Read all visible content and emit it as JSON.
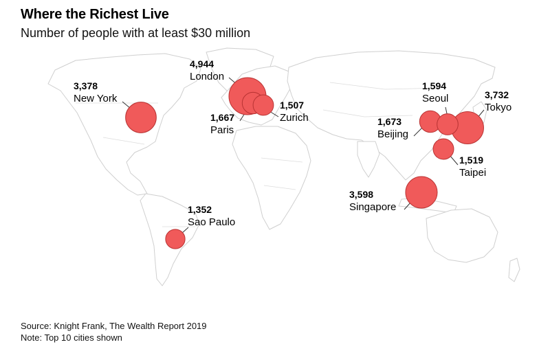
{
  "title": "Where the Richest Live",
  "subtitle": "Number of people with at least $30 million",
  "footer": {
    "source": "Source: Knight Frank, The Wealth Report 2019",
    "note": "Note: Top 10 cities shown"
  },
  "colors": {
    "bubble": "#f05a5a",
    "bubble_stroke": "#b83333",
    "land": "#ffffff",
    "border": "#cfcfcf"
  },
  "chart_data": {
    "type": "bubble-map",
    "title": "Where the Richest Live",
    "subtitle": "Number of people with at least $30 million",
    "cities": [
      {
        "name": "London",
        "value": 4944,
        "label": "4,944"
      },
      {
        "name": "New York",
        "value": 3378,
        "label": "3,378"
      },
      {
        "name": "Paris",
        "value": 1667,
        "label": "1,667"
      },
      {
        "name": "Zurich",
        "value": 1507,
        "label": "1,507"
      },
      {
        "name": "Seoul",
        "value": 1594,
        "label": "1,594"
      },
      {
        "name": "Tokyo",
        "value": 3732,
        "label": "3,732"
      },
      {
        "name": "Beijing",
        "value": 1673,
        "label": "1,673"
      },
      {
        "name": "Taipei",
        "value": 1519,
        "label": "1,519"
      },
      {
        "name": "Singapore",
        "value": 3598,
        "label": "3,598"
      },
      {
        "name": "Sao Paulo",
        "value": 1352,
        "label": "1,352"
      }
    ]
  }
}
